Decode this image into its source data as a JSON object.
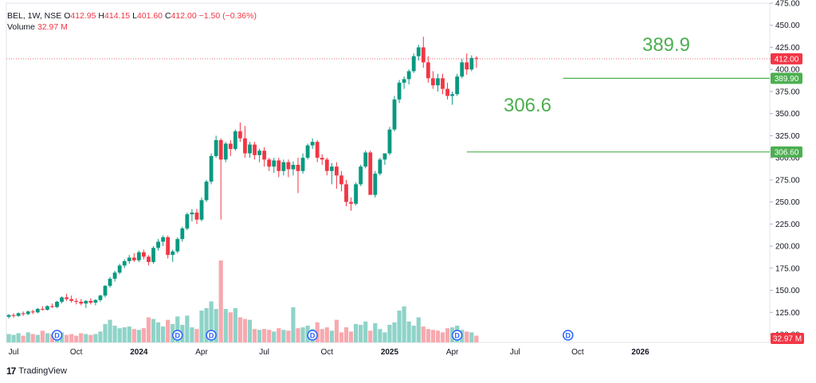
{
  "legend": {
    "symbol": "BEL, 1W, NSE",
    "o_label": "O",
    "o": "412.95",
    "h_label": "H",
    "h": "414.15",
    "l_label": "L",
    "l": "401.60",
    "c_label": "C",
    "c": "412.00",
    "change": "−1.50 (−0.36%)",
    "volume_label": "Volume",
    "volume": "32.97 M"
  },
  "brand": {
    "name": "TradingView",
    "logo_text": "17"
  },
  "chart_data": {
    "type": "candlestick",
    "price_axis": {
      "ticks": [
        100,
        125,
        150,
        175,
        200,
        225,
        250,
        275,
        300,
        325,
        350,
        375,
        400,
        425,
        450,
        475
      ],
      "tick_labels": [
        "100.00",
        "125.00",
        "150.00",
        "175.00",
        "200.00",
        "225.00",
        "250.00",
        "275.00",
        "300.00",
        "325.00",
        "350.00",
        "375.00",
        "400.00",
        "425.00",
        "450.00",
        "475.00"
      ],
      "range": [
        91,
        475
      ]
    },
    "time_axis": {
      "labels": [
        {
          "text": "Jul",
          "week": 1,
          "bold": false
        },
        {
          "text": "Oct",
          "week": 14,
          "bold": false
        },
        {
          "text": "2024",
          "week": 27,
          "bold": true
        },
        {
          "text": "Apr",
          "week": 40,
          "bold": false
        },
        {
          "text": "Jul",
          "week": 53,
          "bold": false
        },
        {
          "text": "Oct",
          "week": 66,
          "bold": false
        },
        {
          "text": "2025",
          "week": 79,
          "bold": true
        },
        {
          "text": "Apr",
          "week": 92,
          "bold": false
        },
        {
          "text": "Jul",
          "week": 105,
          "bold": false
        },
        {
          "text": "Oct",
          "week": 118,
          "bold": false
        },
        {
          "text": "2026",
          "week": 131,
          "bold": true
        }
      ],
      "total_weeks": 140
    },
    "colors": {
      "up": "#089981",
      "down": "#f23645",
      "vol_up": "#8fd3c8",
      "vol_down": "#f7a9af",
      "level": "#4caf50",
      "dividend": "#2962ff"
    },
    "candles": [
      [
        120,
        123,
        118,
        122
      ],
      [
        122,
        124,
        119,
        121
      ],
      [
        121,
        125,
        120,
        124
      ],
      [
        124,
        126,
        121,
        123
      ],
      [
        123,
        127,
        122,
        126
      ],
      [
        126,
        128,
        123,
        125
      ],
      [
        125,
        130,
        124,
        129
      ],
      [
        129,
        132,
        127,
        128
      ],
      [
        128,
        133,
        127,
        132
      ],
      [
        132,
        135,
        130,
        131
      ],
      [
        131,
        138,
        130,
        137
      ],
      [
        137,
        143,
        135,
        142
      ],
      [
        142,
        146,
        138,
        140
      ],
      [
        140,
        144,
        136,
        138
      ],
      [
        138,
        141,
        134,
        137
      ],
      [
        137,
        140,
        133,
        135
      ],
      [
        135,
        139,
        130,
        138
      ],
      [
        138,
        141,
        134,
        136
      ],
      [
        136,
        140,
        133,
        139
      ],
      [
        139,
        145,
        137,
        144
      ],
      [
        144,
        156,
        142,
        155
      ],
      [
        155,
        165,
        153,
        163
      ],
      [
        163,
        172,
        160,
        170
      ],
      [
        170,
        180,
        168,
        178
      ],
      [
        178,
        185,
        175,
        183
      ],
      [
        183,
        190,
        180,
        187
      ],
      [
        187,
        192,
        182,
        184
      ],
      [
        184,
        195,
        182,
        193
      ],
      [
        193,
        196,
        185,
        188
      ],
      [
        188,
        190,
        178,
        182
      ],
      [
        182,
        200,
        180,
        198
      ],
      [
        198,
        208,
        195,
        205
      ],
      [
        205,
        212,
        200,
        210
      ],
      [
        210,
        212,
        186,
        190
      ],
      [
        190,
        196,
        182,
        194
      ],
      [
        194,
        210,
        192,
        208
      ],
      [
        208,
        222,
        205,
        220
      ],
      [
        220,
        238,
        218,
        236
      ],
      [
        236,
        242,
        228,
        238
      ],
      [
        238,
        242,
        225,
        230
      ],
      [
        230,
        255,
        228,
        252
      ],
      [
        252,
        275,
        250,
        273
      ],
      [
        273,
        305,
        270,
        302
      ],
      [
        302,
        325,
        300,
        320
      ],
      [
        320,
        322,
        230,
        298
      ],
      [
        298,
        318,
        295,
        316
      ],
      [
        316,
        320,
        302,
        310
      ],
      [
        310,
        332,
        308,
        330
      ],
      [
        330,
        340,
        318,
        322
      ],
      [
        322,
        336,
        300,
        305
      ],
      [
        305,
        318,
        300,
        315
      ],
      [
        315,
        318,
        298,
        303
      ],
      [
        303,
        310,
        295,
        308
      ],
      [
        308,
        312,
        290,
        298
      ],
      [
        298,
        300,
        285,
        290
      ],
      [
        290,
        300,
        283,
        297
      ],
      [
        297,
        300,
        278,
        285
      ],
      [
        285,
        298,
        280,
        295
      ],
      [
        295,
        298,
        278,
        287
      ],
      [
        287,
        296,
        280,
        292
      ],
      [
        292,
        300,
        260,
        285
      ],
      [
        285,
        305,
        282,
        300
      ],
      [
        300,
        316,
        298,
        314
      ],
      [
        314,
        322,
        310,
        318
      ],
      [
        318,
        320,
        295,
        300
      ],
      [
        300,
        304,
        292,
        298
      ],
      [
        298,
        300,
        280,
        285
      ],
      [
        285,
        294,
        270,
        290
      ],
      [
        290,
        295,
        265,
        280
      ],
      [
        280,
        285,
        262,
        270
      ],
      [
        270,
        275,
        245,
        250
      ],
      [
        250,
        255,
        240,
        248
      ],
      [
        248,
        272,
        246,
        270
      ],
      [
        270,
        292,
        268,
        290
      ],
      [
        290,
        308,
        288,
        306
      ],
      [
        306,
        308,
        260,
        258
      ],
      [
        258,
        285,
        255,
        282
      ],
      [
        282,
        300,
        280,
        298
      ],
      [
        298,
        302,
        292,
        305
      ],
      [
        305,
        335,
        303,
        332
      ],
      [
        332,
        370,
        330,
        366
      ],
      [
        366,
        388,
        362,
        385
      ],
      [
        385,
        392,
        378,
        389
      ],
      [
        389,
        400,
        383,
        398
      ],
      [
        398,
        418,
        396,
        415
      ],
      [
        415,
        428,
        410,
        425
      ],
      [
        425,
        437,
        402,
        408
      ],
      [
        408,
        415,
        385,
        390
      ],
      [
        390,
        398,
        378,
        382
      ],
      [
        382,
        395,
        375,
        390
      ],
      [
        390,
        395,
        372,
        378
      ],
      [
        378,
        385,
        366,
        370
      ],
      [
        370,
        375,
        360,
        372
      ],
      [
        372,
        395,
        370,
        392
      ],
      [
        392,
        412,
        390,
        408
      ],
      [
        408,
        418,
        394,
        400
      ],
      [
        400,
        416,
        398,
        413
      ],
      [
        413,
        415,
        402,
        412
      ]
    ],
    "volumes": [
      [
        10,
        1
      ],
      [
        9,
        1
      ],
      [
        11,
        1
      ],
      [
        8,
        0
      ],
      [
        12,
        1
      ],
      [
        10,
        0
      ],
      [
        9,
        1
      ],
      [
        14,
        0
      ],
      [
        11,
        1
      ],
      [
        10,
        0
      ],
      [
        13,
        1
      ],
      [
        12,
        1
      ],
      [
        9,
        0
      ],
      [
        10,
        0
      ],
      [
        8,
        0
      ],
      [
        11,
        0
      ],
      [
        10,
        1
      ],
      [
        9,
        0
      ],
      [
        10,
        1
      ],
      [
        13,
        1
      ],
      [
        22,
        1
      ],
      [
        27,
        1
      ],
      [
        20,
        1
      ],
      [
        17,
        1
      ],
      [
        18,
        1
      ],
      [
        19,
        1
      ],
      [
        16,
        0
      ],
      [
        15,
        1
      ],
      [
        17,
        0
      ],
      [
        30,
        0
      ],
      [
        28,
        1
      ],
      [
        24,
        1
      ],
      [
        19,
        1
      ],
      [
        27,
        0
      ],
      [
        22,
        1
      ],
      [
        31,
        1
      ],
      [
        21,
        1
      ],
      [
        32,
        1
      ],
      [
        18,
        1
      ],
      [
        16,
        0
      ],
      [
        38,
        1
      ],
      [
        41,
        1
      ],
      [
        49,
        1
      ],
      [
        40,
        1
      ],
      [
        98,
        0
      ],
      [
        40,
        1
      ],
      [
        36,
        0
      ],
      [
        41,
        1
      ],
      [
        30,
        0
      ],
      [
        28,
        0
      ],
      [
        27,
        1
      ],
      [
        16,
        0
      ],
      [
        15,
        1
      ],
      [
        16,
        0
      ],
      [
        15,
        0
      ],
      [
        13,
        1
      ],
      [
        17,
        0
      ],
      [
        15,
        1
      ],
      [
        14,
        0
      ],
      [
        42,
        1
      ],
      [
        17,
        0
      ],
      [
        18,
        1
      ],
      [
        20,
        1
      ],
      [
        16,
        1
      ],
      [
        24,
        0
      ],
      [
        16,
        0
      ],
      [
        18,
        0
      ],
      [
        14,
        1
      ],
      [
        27,
        0
      ],
      [
        12,
        0
      ],
      [
        18,
        0
      ],
      [
        13,
        0
      ],
      [
        22,
        1
      ],
      [
        21,
        1
      ],
      [
        25,
        1
      ],
      [
        14,
        0
      ],
      [
        23,
        1
      ],
      [
        16,
        1
      ],
      [
        12,
        1
      ],
      [
        21,
        1
      ],
      [
        24,
        1
      ],
      [
        38,
        1
      ],
      [
        43,
        1
      ],
      [
        25,
        1
      ],
      [
        20,
        1
      ],
      [
        30,
        1
      ],
      [
        19,
        0
      ],
      [
        16,
        0
      ],
      [
        15,
        0
      ],
      [
        14,
        0
      ],
      [
        12,
        0
      ],
      [
        17,
        0
      ],
      [
        18,
        1
      ],
      [
        20,
        1
      ],
      [
        15,
        1
      ],
      [
        13,
        0
      ],
      [
        12,
        1
      ],
      [
        8,
        0
      ]
    ],
    "volume_scale_max": 100,
    "dividends": [
      {
        "week": 10,
        "label": "D"
      },
      {
        "week": 35,
        "label": "D"
      },
      {
        "week": 42,
        "label": "D"
      },
      {
        "week": 63,
        "label": "D"
      },
      {
        "week": 93,
        "label": "D"
      },
      {
        "week": 116,
        "label": "D"
      }
    ],
    "levels": [
      {
        "value": 389.9,
        "annotation": "389.9",
        "label": "389.90",
        "start_week": 115
      },
      {
        "value": 306.6,
        "annotation": "306.6",
        "label": "306.60",
        "start_week": 95
      }
    ],
    "last_price": {
      "value": 412.0,
      "label": "412.00"
    },
    "last_volume": {
      "label": "32.97 M"
    }
  }
}
